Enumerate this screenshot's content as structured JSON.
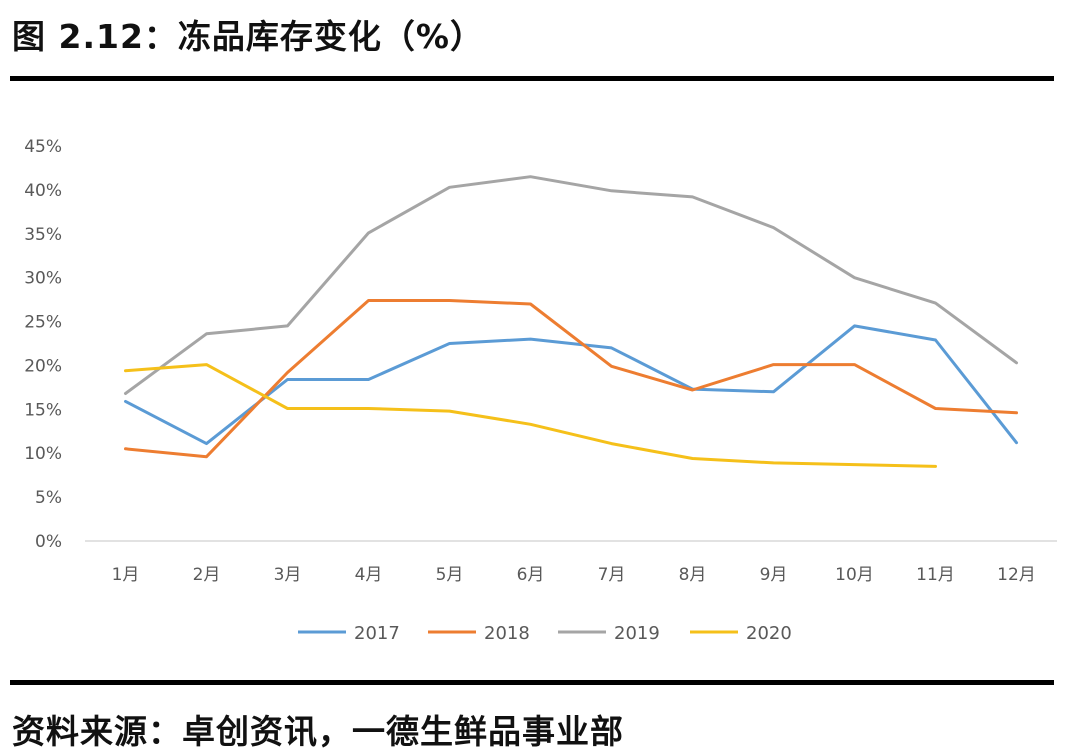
{
  "header": {
    "title": "图 2.12：冻品库存变化（%）"
  },
  "footer": {
    "source": "资料来源：卓创资讯，一德生鲜品事业部"
  },
  "chart_data": {
    "type": "line",
    "categories": [
      "1月",
      "2月",
      "3月",
      "4月",
      "5月",
      "6月",
      "7月",
      "8月",
      "9月",
      "10月",
      "11月",
      "12月"
    ],
    "y_ticks": [
      "0%",
      "5%",
      "10%",
      "15%",
      "20%",
      "25%",
      "30%",
      "35%",
      "40%",
      "45%"
    ],
    "ylim": [
      0,
      45
    ],
    "grid": false,
    "legend_position": "bottom",
    "series": [
      {
        "name": "2017",
        "color": "#5B9BD5",
        "values": [
          15.9,
          11.1,
          18.4,
          18.4,
          22.5,
          23.0,
          22.0,
          17.3,
          17.0,
          24.5,
          22.9,
          11.2
        ]
      },
      {
        "name": "2018",
        "color": "#ED7D31",
        "values": [
          10.5,
          9.6,
          19.2,
          27.4,
          27.4,
          27.0,
          19.9,
          17.2,
          20.1,
          20.1,
          15.1,
          14.6
        ]
      },
      {
        "name": "2019",
        "color": "#A5A5A5",
        "values": [
          16.8,
          23.6,
          24.5,
          35.1,
          40.3,
          41.5,
          39.9,
          39.2,
          35.7,
          30.0,
          27.1,
          20.3
        ]
      },
      {
        "name": "2020",
        "color": "#F5C01A",
        "values": [
          19.4,
          20.1,
          15.1,
          15.1,
          14.8,
          13.3,
          11.1,
          9.4,
          8.9,
          8.7,
          8.5,
          null
        ]
      }
    ]
  }
}
